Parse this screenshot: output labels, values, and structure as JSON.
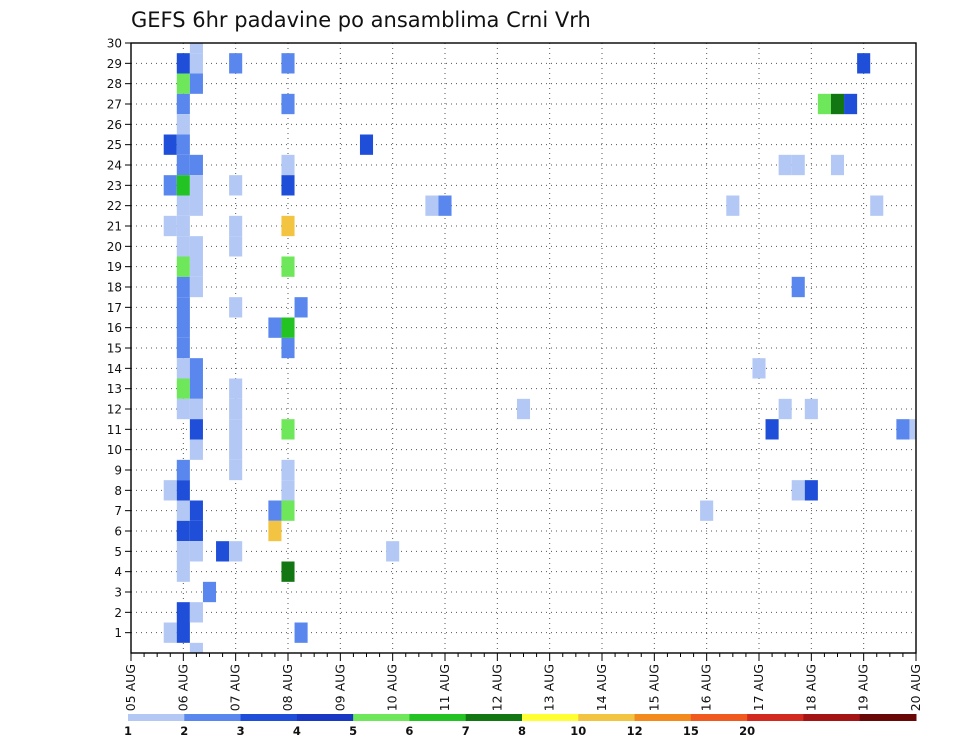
{
  "chart_data": {
    "type": "heatmap",
    "title": "GEFS 6hr padavine po ansamblima Crni Vrh",
    "xlabel": "",
    "ylabel": "",
    "x_start": "05 AUG 00Z",
    "x_step_hours": 6,
    "x_tick_labels": [
      "05 AUG",
      "06 AUG",
      "07 AUG",
      "08 AUG",
      "09 AUG",
      "10 AUG",
      "11 AUG",
      "12 AUG",
      "13 AUG",
      "14 AUG",
      "15 AUG",
      "16 AUG",
      "17 AUG",
      "18 AUG",
      "19 AUG",
      "20 AUG"
    ],
    "y_tick_labels": [
      "1",
      "2",
      "3",
      "4",
      "5",
      "6",
      "7",
      "8",
      "9",
      "10",
      "11",
      "12",
      "13",
      "14",
      "15",
      "16",
      "17",
      "18",
      "19",
      "20",
      "21",
      "22",
      "23",
      "24",
      "25",
      "26",
      "27",
      "28",
      "29",
      "30"
    ],
    "ylim": [
      0,
      30
    ],
    "grid": true,
    "legend": "bottom",
    "colorbar": {
      "labels": [
        "1",
        "2",
        "3",
        "4",
        "5",
        "6",
        "7",
        "8",
        "10",
        "12",
        "15",
        "20"
      ],
      "colors": [
        "#b4c8f5",
        "#5a87ee",
        "#1f4fd8",
        "#1939c4",
        "#6ee85a",
        "#22c322",
        "#127712",
        "#ffff33",
        "#f3c441",
        "#f28a1e",
        "#f05a1e",
        "#d22a1e",
        "#a51414",
        "#6a0808"
      ]
    },
    "cells": [
      {
        "member": 30,
        "time": "06 AUG 06Z",
        "level": 1
      },
      {
        "member": 29,
        "time": "06 AUG 00Z",
        "level": 3
      },
      {
        "member": 29,
        "time": "06 AUG 06Z",
        "level": 1
      },
      {
        "member": 29,
        "time": "07 AUG 00Z",
        "level": 2
      },
      {
        "member": 29,
        "time": "08 AUG 00Z",
        "level": 2
      },
      {
        "member": 29,
        "time": "19 AUG 00Z",
        "level": 3
      },
      {
        "member": 28,
        "time": "06 AUG 00Z",
        "level": 5
      },
      {
        "member": 28,
        "time": "06 AUG 06Z",
        "level": 2
      },
      {
        "member": 27,
        "time": "06 AUG 00Z",
        "level": 2
      },
      {
        "member": 27,
        "time": "08 AUG 00Z",
        "level": 2
      },
      {
        "member": 27,
        "time": "18 AUG 06Z",
        "level": 5
      },
      {
        "member": 27,
        "time": "18 AUG 12Z",
        "level": 7
      },
      {
        "member": 27,
        "time": "18 AUG 18Z",
        "level": 3
      },
      {
        "member": 26,
        "time": "06 AUG 00Z",
        "level": 1
      },
      {
        "member": 25,
        "time": "05 AUG 18Z",
        "level": 3
      },
      {
        "member": 25,
        "time": "06 AUG 00Z",
        "level": 2
      },
      {
        "member": 25,
        "time": "09 AUG 12Z",
        "level": 3
      },
      {
        "member": 24,
        "time": "06 AUG 00Z",
        "level": 2
      },
      {
        "member": 24,
        "time": "06 AUG 06Z",
        "level": 2
      },
      {
        "member": 24,
        "time": "08 AUG 00Z",
        "level": 1
      },
      {
        "member": 24,
        "time": "17 AUG 12Z",
        "level": 1
      },
      {
        "member": 24,
        "time": "17 AUG 18Z",
        "level": 1
      },
      {
        "member": 24,
        "time": "18 AUG 12Z",
        "level": 1
      },
      {
        "member": 23,
        "time": "05 AUG 18Z",
        "level": 2
      },
      {
        "member": 23,
        "time": "06 AUG 00Z",
        "level": 6
      },
      {
        "member": 23,
        "time": "06 AUG 06Z",
        "level": 1
      },
      {
        "member": 23,
        "time": "07 AUG 00Z",
        "level": 1
      },
      {
        "member": 23,
        "time": "08 AUG 00Z",
        "level": 3
      },
      {
        "member": 22,
        "time": "06 AUG 00Z",
        "level": 1
      },
      {
        "member": 22,
        "time": "06 AUG 06Z",
        "level": 1
      },
      {
        "member": 22,
        "time": "10 AUG 18Z",
        "level": 1
      },
      {
        "member": 22,
        "time": "11 AUG 00Z",
        "level": 2
      },
      {
        "member": 22,
        "time": "16 AUG 12Z",
        "level": 1
      },
      {
        "member": 22,
        "time": "19 AUG 06Z",
        "level": 1
      },
      {
        "member": 21,
        "time": "05 AUG 18Z",
        "level": 1
      },
      {
        "member": 21,
        "time": "06 AUG 00Z",
        "level": 1
      },
      {
        "member": 21,
        "time": "07 AUG 00Z",
        "level": 1
      },
      {
        "member": 21,
        "time": "08 AUG 00Z",
        "level": 9
      },
      {
        "member": 20,
        "time": "06 AUG 00Z",
        "level": 1
      },
      {
        "member": 20,
        "time": "06 AUG 06Z",
        "level": 1
      },
      {
        "member": 20,
        "time": "07 AUG 00Z",
        "level": 1
      },
      {
        "member": 19,
        "time": "06 AUG 00Z",
        "level": 5
      },
      {
        "member": 19,
        "time": "06 AUG 06Z",
        "level": 1
      },
      {
        "member": 19,
        "time": "08 AUG 00Z",
        "level": 5
      },
      {
        "member": 18,
        "time": "06 AUG 00Z",
        "level": 2
      },
      {
        "member": 18,
        "time": "06 AUG 06Z",
        "level": 1
      },
      {
        "member": 18,
        "time": "17 AUG 18Z",
        "level": 2
      },
      {
        "member": 17,
        "time": "06 AUG 00Z",
        "level": 2
      },
      {
        "member": 17,
        "time": "07 AUG 00Z",
        "level": 1
      },
      {
        "member": 17,
        "time": "08 AUG 06Z",
        "level": 2
      },
      {
        "member": 16,
        "time": "06 AUG 00Z",
        "level": 2
      },
      {
        "member": 16,
        "time": "07 AUG 18Z",
        "level": 2
      },
      {
        "member": 16,
        "time": "08 AUG 00Z",
        "level": 6
      },
      {
        "member": 15,
        "time": "06 AUG 00Z",
        "level": 2
      },
      {
        "member": 15,
        "time": "08 AUG 00Z",
        "level": 2
      },
      {
        "member": 14,
        "time": "06 AUG 00Z",
        "level": 1
      },
      {
        "member": 14,
        "time": "06 AUG 06Z",
        "level": 2
      },
      {
        "member": 14,
        "time": "17 AUG 00Z",
        "level": 1
      },
      {
        "member": 13,
        "time": "06 AUG 00Z",
        "level": 5
      },
      {
        "member": 13,
        "time": "06 AUG 06Z",
        "level": 2
      },
      {
        "member": 13,
        "time": "07 AUG 00Z",
        "level": 1
      },
      {
        "member": 12,
        "time": "06 AUG 00Z",
        "level": 1
      },
      {
        "member": 12,
        "time": "06 AUG 06Z",
        "level": 1
      },
      {
        "member": 12,
        "time": "07 AUG 00Z",
        "level": 1
      },
      {
        "member": 12,
        "time": "12 AUG 12Z",
        "level": 1
      },
      {
        "member": 12,
        "time": "17 AUG 12Z",
        "level": 1
      },
      {
        "member": 12,
        "time": "18 AUG 00Z",
        "level": 1
      },
      {
        "member": 11,
        "time": "06 AUG 06Z",
        "level": 3
      },
      {
        "member": 11,
        "time": "07 AUG 00Z",
        "level": 1
      },
      {
        "member": 11,
        "time": "08 AUG 00Z",
        "level": 5
      },
      {
        "member": 11,
        "time": "17 AUG 06Z",
        "level": 3
      },
      {
        "member": 11,
        "time": "19 AUG 18Z",
        "level": 2
      },
      {
        "member": 11,
        "time": "20 AUG 00Z",
        "level": 1
      },
      {
        "member": 10,
        "time": "06 AUG 06Z",
        "level": 1
      },
      {
        "member": 10,
        "time": "07 AUG 00Z",
        "level": 1
      },
      {
        "member": 9,
        "time": "06 AUG 00Z",
        "level": 2
      },
      {
        "member": 9,
        "time": "07 AUG 00Z",
        "level": 1
      },
      {
        "member": 9,
        "time": "08 AUG 00Z",
        "level": 1
      },
      {
        "member": 8,
        "time": "05 AUG 18Z",
        "level": 1
      },
      {
        "member": 8,
        "time": "06 AUG 00Z",
        "level": 3
      },
      {
        "member": 8,
        "time": "08 AUG 00Z",
        "level": 1
      },
      {
        "member": 8,
        "time": "17 AUG 18Z",
        "level": 1
      },
      {
        "member": 8,
        "time": "18 AUG 00Z",
        "level": 3
      },
      {
        "member": 7,
        "time": "06 AUG 00Z",
        "level": 1
      },
      {
        "member": 7,
        "time": "06 AUG 06Z",
        "level": 3
      },
      {
        "member": 7,
        "time": "07 AUG 18Z",
        "level": 2
      },
      {
        "member": 7,
        "time": "08 AUG 00Z",
        "level": 5
      },
      {
        "member": 7,
        "time": "16 AUG 00Z",
        "level": 1
      },
      {
        "member": 6,
        "time": "06 AUG 00Z",
        "level": 3
      },
      {
        "member": 6,
        "time": "06 AUG 06Z",
        "level": 3
      },
      {
        "member": 6,
        "time": "07 AUG 18Z",
        "level": 9
      },
      {
        "member": 5,
        "time": "06 AUG 00Z",
        "level": 1
      },
      {
        "member": 5,
        "time": "06 AUG 06Z",
        "level": 1
      },
      {
        "member": 5,
        "time": "06 AUG 18Z",
        "level": 3
      },
      {
        "member": 5,
        "time": "07 AUG 00Z",
        "level": 1
      },
      {
        "member": 5,
        "time": "10 AUG 00Z",
        "level": 1
      },
      {
        "member": 4,
        "time": "06 AUG 00Z",
        "level": 1
      },
      {
        "member": 4,
        "time": "08 AUG 00Z",
        "level": 7
      },
      {
        "member": 3,
        "time": "06 AUG 12Z",
        "level": 2
      },
      {
        "member": 2,
        "time": "06 AUG 00Z",
        "level": 3
      },
      {
        "member": 2,
        "time": "06 AUG 06Z",
        "level": 1
      },
      {
        "member": 1,
        "time": "05 AUG 18Z",
        "level": 1
      },
      {
        "member": 1,
        "time": "06 AUG 00Z",
        "level": 3
      },
      {
        "member": 1,
        "time": "08 AUG 06Z",
        "level": 2
      },
      {
        "member": 0,
        "time": "06 AUG 06Z",
        "level": 1
      }
    ]
  }
}
